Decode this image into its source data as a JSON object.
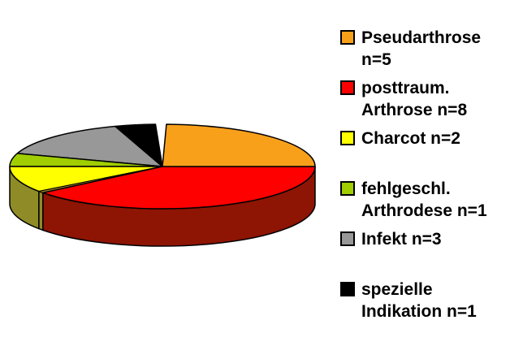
{
  "chart_data": {
    "type": "pie",
    "style": "3d",
    "title": "",
    "categories": [
      "Pseudarthrose",
      "posttraum. Arthrose",
      "Charcot",
      "fehlgeschl. Arthrodese",
      "Infekt",
      "spezielle Indikation"
    ],
    "values": [
      5,
      8,
      2,
      1,
      3,
      1
    ],
    "total": 20,
    "direction": "clockwise",
    "start_angle_deg": 0,
    "legend_position": "right",
    "colors": [
      "#F9A01B",
      "#FF0000",
      "#FFFF00",
      "#A0CE00",
      "#989898",
      "#000000"
    ],
    "side_colors": [
      "",
      "#8E1404",
      "#8F8C28",
      "",
      "",
      ""
    ],
    "separator_color": "#99772B",
    "legend": [
      {
        "text": "Pseudarthrose\nn=5",
        "color": "#F9A01B"
      },
      {
        "text": "posttraum.\nArthrose n=8",
        "color": "#FF0000"
      },
      {
        "text": "Charcot n=2",
        "color": "#FFFF00"
      },
      {
        "text": "fehlgeschl.\nArthrodese n=1",
        "color": "#A0CE00"
      },
      {
        "text": "Infekt n=3",
        "color": "#989898"
      },
      {
        "text": "spezielle\nIndikation n=1",
        "color": "#000000"
      }
    ]
  }
}
